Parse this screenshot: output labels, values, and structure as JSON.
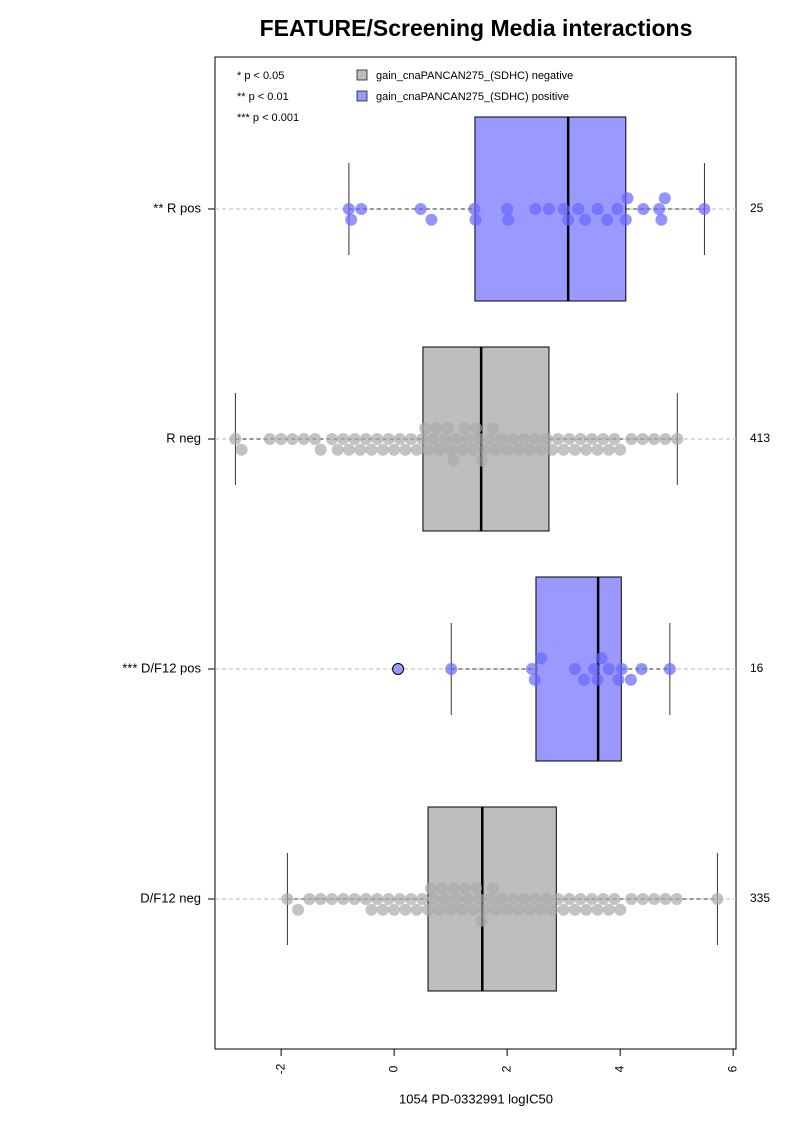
{
  "chart_data": {
    "type": "boxplot",
    "title": "FEATURE/Screening Media interactions",
    "x_label": "1054 PD-0332991 logIC50",
    "xlim": [
      -3.17,
      6.05
    ],
    "xticks": [
      -2,
      0,
      2,
      4,
      6
    ],
    "annotations": [
      "* p < 0.05",
      "** p < 0.01",
      "*** p < 0.001"
    ],
    "legend": [
      {
        "name": "gain_cnaPANCAN275_(SDHC) negative",
        "color": "#bebebe"
      },
      {
        "name": "gain_cnaPANCAN275_(SDHC) positive",
        "color": "#9999ff"
      }
    ],
    "groups": [
      {
        "label": "** R pos",
        "n": 25,
        "color": "#9999ff",
        "point_color": "#6666ff",
        "whisker_low": -0.8,
        "q1": 1.43,
        "median": 3.08,
        "q3": 4.1,
        "whisker_high": 5.49,
        "outliers": [],
        "points": [
          -0.8,
          -0.76,
          -0.58,
          0.47,
          0.66,
          1.42,
          1.44,
          2.0,
          2.02,
          2.5,
          2.74,
          3.0,
          3.08,
          3.26,
          3.38,
          3.6,
          3.77,
          3.95,
          4.1,
          4.13,
          4.41,
          4.69,
          4.73,
          4.79,
          5.49
        ]
      },
      {
        "label": "R neg",
        "n": 413,
        "color": "#bebebe",
        "point_color": "#aaaaaa",
        "whisker_low": -2.81,
        "q1": 0.51,
        "median": 1.54,
        "q3": 2.74,
        "whisker_high": 5.01,
        "outliers": [],
        "points": [
          -2.81,
          -2.7,
          -2.2,
          -2.0,
          -1.8,
          -1.6,
          -1.4,
          -1.3,
          -1.1,
          -1.0,
          -0.9,
          -0.8,
          -0.7,
          -0.6,
          -0.5,
          -0.4,
          -0.3,
          -0.2,
          -0.1,
          0.0,
          0.1,
          0.2,
          0.3,
          0.4,
          0.5,
          0.55,
          0.6,
          0.7,
          0.75,
          0.8,
          0.9,
          0.95,
          1.0,
          1.05,
          1.1,
          1.2,
          1.25,
          1.3,
          1.4,
          1.45,
          1.5,
          1.55,
          1.6,
          1.7,
          1.75,
          1.8,
          1.9,
          2.0,
          2.1,
          2.2,
          2.3,
          2.4,
          2.5,
          2.6,
          2.7,
          2.8,
          2.9,
          3.0,
          3.1,
          3.2,
          3.3,
          3.4,
          3.5,
          3.6,
          3.7,
          3.8,
          3.9,
          4.0,
          4.2,
          4.4,
          4.6,
          4.8,
          5.01
        ]
      },
      {
        "label": "*** D/F12 pos",
        "n": 16,
        "color": "#9999ff",
        "point_color": "#6666ff",
        "whisker_low": 1.01,
        "q1": 2.51,
        "median": 3.61,
        "q3": 4.02,
        "whisker_high": 4.88,
        "outliers": [
          0.07
        ],
        "points": [
          1.01,
          2.44,
          2.49,
          2.6,
          3.2,
          3.36,
          3.54,
          3.6,
          3.67,
          3.8,
          3.97,
          4.03,
          4.19,
          4.38,
          4.88
        ]
      },
      {
        "label": "D/F12 neg",
        "n": 335,
        "color": "#bebebe",
        "point_color": "#aaaaaa",
        "whisker_low": -1.89,
        "q1": 0.6,
        "median": 1.56,
        "q3": 2.87,
        "whisker_high": 5.72,
        "outliers": [],
        "points": [
          -1.89,
          -1.7,
          -1.5,
          -1.3,
          -1.1,
          -0.9,
          -0.7,
          -0.5,
          -0.4,
          -0.3,
          -0.2,
          -0.1,
          0.0,
          0.1,
          0.2,
          0.3,
          0.4,
          0.5,
          0.6,
          0.65,
          0.7,
          0.8,
          0.85,
          0.9,
          1.0,
          1.05,
          1.1,
          1.2,
          1.25,
          1.3,
          1.4,
          1.45,
          1.5,
          1.55,
          1.6,
          1.7,
          1.75,
          1.8,
          1.9,
          2.0,
          2.1,
          2.2,
          2.3,
          2.4,
          2.5,
          2.6,
          2.7,
          2.8,
          2.9,
          3.0,
          3.1,
          3.2,
          3.3,
          3.4,
          3.5,
          3.6,
          3.7,
          3.8,
          3.9,
          4.0,
          4.2,
          4.4,
          4.6,
          4.8,
          5.0,
          5.72
        ]
      }
    ]
  }
}
